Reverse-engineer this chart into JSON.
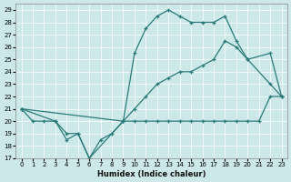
{
  "xlabel": "Humidex (Indice chaleur)",
  "bg_color": "#cce8e8",
  "line_color": "#2a7a7a",
  "xlim": [
    -0.5,
    23.5
  ],
  "ylim": [
    17,
    29.5
  ],
  "yticks": [
    17,
    18,
    19,
    20,
    21,
    22,
    23,
    24,
    25,
    26,
    27,
    28,
    29
  ],
  "xticks": [
    0,
    1,
    2,
    3,
    4,
    5,
    6,
    7,
    8,
    9,
    10,
    11,
    12,
    13,
    14,
    15,
    16,
    17,
    18,
    19,
    20,
    21,
    22,
    23
  ],
  "line_top_x": [
    0,
    3,
    4,
    5,
    6,
    9,
    10,
    11,
    12,
    13,
    14,
    15,
    16,
    17,
    18,
    19,
    20,
    22,
    23
  ],
  "line_top_y": [
    21,
    20,
    18.5,
    19,
    17,
    20,
    25.5,
    27.5,
    28.5,
    29,
    28.5,
    28,
    28,
    28,
    28.5,
    26.5,
    25,
    23,
    22
  ],
  "line_mid_x": [
    0,
    9,
    10,
    11,
    12,
    13,
    14,
    15,
    16,
    17,
    18,
    19,
    20,
    22,
    23
  ],
  "line_mid_y": [
    21,
    20,
    21,
    22,
    23,
    23.5,
    24,
    24,
    24.5,
    25,
    26.5,
    26,
    25,
    25.5,
    22
  ],
  "line_bot_x": [
    0,
    1,
    2,
    3,
    4,
    5,
    6,
    7,
    8,
    9,
    10,
    11,
    12,
    13,
    14,
    15,
    16,
    17,
    18,
    19,
    20,
    21,
    22,
    23
  ],
  "line_bot_y": [
    21,
    20,
    20,
    20,
    19,
    19,
    17,
    18.5,
    19,
    20,
    20,
    20,
    20,
    20,
    20,
    20,
    20,
    20,
    20,
    20,
    20,
    20,
    22,
    22
  ]
}
